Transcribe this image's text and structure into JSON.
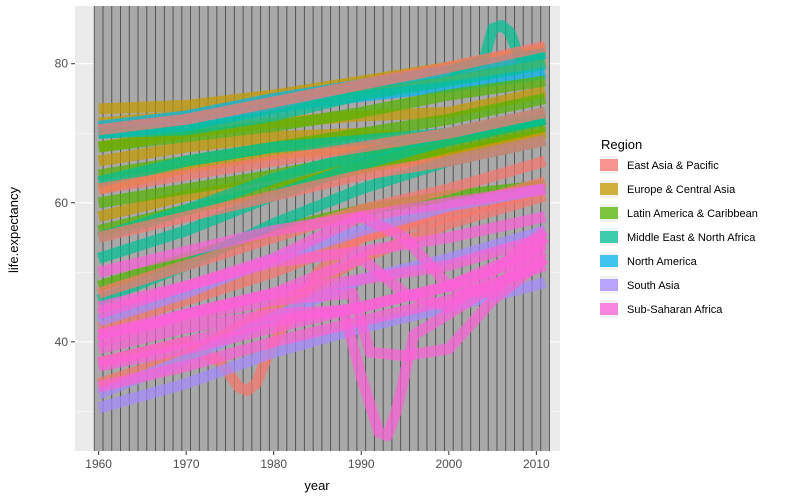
{
  "chart_data": {
    "type": "line",
    "xlabel": "year",
    "ylabel": "life.expectancy",
    "xlim": [
      1957.3,
      2012.7
    ],
    "ylim": [
      24.3,
      88.3
    ],
    "x_ticks": [
      1960,
      1970,
      1980,
      1990,
      2000,
      2010
    ],
    "y_ticks": [
      40,
      60,
      80
    ],
    "grid": true,
    "legend": {
      "title": "Region",
      "position": "right",
      "entries": [
        {
          "name": "East Asia & Pacific",
          "color": "#F8766D"
        },
        {
          "name": "Europe & Central Asia",
          "color": "#C49A00"
        },
        {
          "name": "Latin America & Caribbean",
          "color": "#53B400"
        },
        {
          "name": "Middle East & North Africa",
          "color": "#00C094"
        },
        {
          "name": "North America",
          "color": "#00B6EB"
        },
        {
          "name": "South Asia",
          "color": "#A58AFF"
        },
        {
          "name": "Sub-Saharan Africa",
          "color": "#FB61D7"
        }
      ]
    },
    "series": [
      {
        "region": "Europe & Central Asia",
        "x": [
          1960,
          1970,
          1980,
          1990,
          2000,
          2011
        ],
        "y": [
          73.5,
          74,
          75.5,
          77.5,
          79.5,
          82
        ]
      },
      {
        "region": "Europe & Central Asia",
        "x": [
          1960,
          1970,
          1980,
          1990,
          2000,
          2011
        ],
        "y": [
          71.5,
          72.5,
          74,
          76,
          78,
          80.5
        ]
      },
      {
        "region": "Europe & Central Asia",
        "x": [
          1960,
          1970,
          1980,
          1990,
          2000,
          2011
        ],
        "y": [
          68,
          70,
          71.5,
          72.5,
          73,
          76
        ]
      },
      {
        "region": "Europe & Central Asia",
        "x": [
          1960,
          1970,
          1980,
          1990,
          2000,
          2011
        ],
        "y": [
          66,
          68,
          69.5,
          70,
          69,
          72
        ]
      },
      {
        "region": "Europe & Central Asia",
        "x": [
          1960,
          1970,
          1980,
          1990,
          2000,
          2011
        ],
        "y": [
          62,
          65,
          67,
          68,
          67,
          70
        ]
      },
      {
        "region": "Europe & Central Asia",
        "x": [
          1960,
          1970,
          1980,
          1990,
          2000,
          2011
        ],
        "y": [
          58,
          61,
          63,
          65,
          67,
          70
        ]
      },
      {
        "region": "North America",
        "x": [
          1960,
          1970,
          1980,
          1990,
          2000,
          2011
        ],
        "y": [
          70,
          71,
          73.7,
          75.3,
          76.7,
          78.6
        ]
      },
      {
        "region": "North America",
        "x": [
          1960,
          1970,
          1980,
          1990,
          2000,
          2011
        ],
        "y": [
          71,
          72.5,
          75,
          77,
          79,
          81.5
        ]
      },
      {
        "region": "Latin America & Caribbean",
        "x": [
          1960,
          1970,
          1980,
          1990,
          2000,
          2011
        ],
        "y": [
          68,
          69.5,
          71,
          73,
          75.5,
          77.5
        ]
      },
      {
        "region": "Latin America & Caribbean",
        "x": [
          1960,
          1970,
          1980,
          1990,
          2000,
          2011
        ],
        "y": [
          64,
          66,
          68,
          70,
          72,
          75
        ]
      },
      {
        "region": "Latin America & Caribbean",
        "x": [
          1960,
          1970,
          1980,
          1990,
          2000,
          2011
        ],
        "y": [
          60,
          62,
          64,
          66.5,
          69,
          72
        ]
      },
      {
        "region": "Latin America & Caribbean",
        "x": [
          1960,
          1970,
          1980,
          1990,
          2000,
          2011
        ],
        "y": [
          56,
          59,
          62,
          65,
          68,
          71
        ]
      },
      {
        "region": "Latin America & Caribbean",
        "x": [
          1960,
          1970,
          1980,
          1990,
          2000,
          2011
        ],
        "y": [
          48,
          52,
          56,
          59,
          61,
          62.5
        ]
      },
      {
        "region": "Middle East & North Africa",
        "x": [
          1960,
          1970,
          1980,
          1990,
          2000,
          2011
        ],
        "y": [
          70,
          70.5,
          72.5,
          75.5,
          77.5,
          80
        ]
      },
      {
        "region": "Middle East & North Africa",
        "x": [
          1960,
          1970,
          1980,
          1990,
          2000,
          2011
        ],
        "y": [
          63,
          66,
          68,
          69,
          70,
          72
        ]
      },
      {
        "region": "Middle East & North Africa",
        "x": [
          1960,
          1970,
          1980,
          1990,
          2000,
          2011
        ],
        "y": [
          55,
          59,
          63.5,
          67,
          70,
          73
        ]
      },
      {
        "region": "Middle East & North Africa",
        "x": [
          1960,
          1970,
          1980,
          1990,
          2000,
          2011
        ],
        "y": [
          52,
          56,
          61,
          65.5,
          69,
          72
        ]
      },
      {
        "region": "Middle East & North Africa",
        "x": [
          1960,
          1970,
          1980,
          1990,
          2000,
          2011
        ],
        "y": [
          46,
          51,
          57,
          62,
          66,
          69
        ]
      },
      {
        "region": "Middle East & North Africa",
        "x": [
          2000,
          2004,
          2005,
          2006,
          2007,
          2008,
          2011
        ],
        "y": [
          79,
          80.5,
          85,
          85.5,
          84.5,
          81,
          81.5
        ]
      },
      {
        "region": "East Asia & Pacific",
        "x": [
          1960,
          1970,
          1980,
          1990,
          2000,
          2011
        ],
        "y": [
          70.5,
          72,
          74.5,
          77,
          79.5,
          82.5
        ]
      },
      {
        "region": "East Asia & Pacific",
        "x": [
          1960,
          1970,
          1980,
          1990,
          2000,
          2011
        ],
        "y": [
          62,
          64,
          66,
          68,
          70,
          73
        ]
      },
      {
        "region": "East Asia & Pacific",
        "x": [
          1960,
          1970,
          1980,
          1990,
          2000,
          2011
        ],
        "y": [
          55,
          58,
          61,
          64,
          66,
          69
        ]
      },
      {
        "region": "East Asia & Pacific",
        "x": [
          1960,
          1970,
          1980,
          1990,
          2000,
          2011
        ],
        "y": [
          47,
          51,
          55,
          59,
          62,
          66
        ]
      },
      {
        "region": "East Asia & Pacific",
        "x": [
          1960,
          1970,
          1980,
          1990,
          2000,
          2011
        ],
        "y": [
          42,
          46,
          50,
          55,
          59,
          63
        ]
      },
      {
        "region": "East Asia & Pacific",
        "x": [
          1960,
          1970,
          1974,
          1976,
          1977,
          1978,
          1980,
          1985,
          1990,
          2000,
          2011
        ],
        "y": [
          37,
          40,
          37,
          33.5,
          33,
          34,
          40,
          50,
          55,
          58,
          62
        ]
      },
      {
        "region": "East Asia & Pacific",
        "x": [
          1960,
          1970,
          1980,
          1990,
          2000,
          2011
        ],
        "y": [
          34,
          38,
          45,
          52,
          57,
          61
        ]
      },
      {
        "region": "South Asia",
        "x": [
          1960,
          1970,
          1980,
          1990,
          2000,
          2011
        ],
        "y": [
          43,
          47,
          52,
          56,
          59.5,
          62
        ]
      },
      {
        "region": "South Asia",
        "x": [
          1960,
          1970,
          1980,
          1990,
          2000,
          2011
        ],
        "y": [
          32.5,
          37.5,
          43.5,
          49,
          52,
          56
        ]
      },
      {
        "region": "South Asia",
        "x": [
          1960,
          1970,
          1980,
          1990,
          2000,
          2011
        ],
        "y": [
          30.5,
          34,
          38.5,
          42,
          45,
          48.5
        ]
      },
      {
        "region": "Sub-Saharan Africa",
        "x": [
          1960,
          1970,
          1980,
          1990,
          2000,
          2011
        ],
        "y": [
          50,
          53,
          56,
          58,
          60,
          62
        ]
      },
      {
        "region": "Sub-Saharan Africa",
        "x": [
          1960,
          1970,
          1980,
          1990,
          2000,
          2011
        ],
        "y": [
          45,
          48,
          51.5,
          53,
          55,
          58
        ]
      },
      {
        "region": "Sub-Saharan Africa",
        "x": [
          1960,
          1970,
          1980,
          1990,
          2000,
          2011
        ],
        "y": [
          41,
          44,
          47,
          49,
          51,
          55
        ]
      },
      {
        "region": "Sub-Saharan Africa",
        "x": [
          1960,
          1970,
          1980,
          1990,
          2000,
          2011
        ],
        "y": [
          37,
          40,
          43,
          45,
          48,
          53
        ]
      },
      {
        "region": "Sub-Saharan Africa",
        "x": [
          1960,
          1970,
          1980,
          1990,
          2000,
          2011
        ],
        "y": [
          33.5,
          36.5,
          40,
          43,
          46,
          51
        ]
      },
      {
        "region": "Sub-Saharan Africa",
        "x": [
          1960,
          1970,
          1980,
          1986,
          1990,
          1995,
          2000,
          2005,
          2011
        ],
        "y": [
          40,
          44,
          47,
          50,
          52,
          47,
          45,
          50,
          56
        ]
      },
      {
        "region": "Sub-Saharan Africa",
        "x": [
          1960,
          1970,
          1980,
          1990,
          1995,
          2000,
          2005,
          2011
        ],
        "y": [
          44,
          48,
          52,
          58,
          55,
          48,
          47,
          55
        ]
      },
      {
        "region": "Sub-Saharan Africa",
        "x": [
          1960,
          1970,
          1980,
          1988,
          1990,
          1992,
          1993,
          1994,
          1996,
          2000,
          2005,
          2011
        ],
        "y": [
          39,
          42,
          44,
          44.5,
          35,
          27,
          26.5,
          30,
          41,
          44,
          48,
          52
        ]
      },
      {
        "region": "Sub-Saharan Africa",
        "x": [
          1960,
          1970,
          1980,
          1989,
          1991,
          1995,
          2000,
          2005,
          2011
        ],
        "y": [
          41,
          43.5,
          46,
          47,
          38.5,
          38,
          39,
          46,
          52
        ]
      },
      {
        "region": "Sub-Saharan Africa",
        "x": [
          1960,
          1970,
          1980,
          1990,
          2000,
          2011
        ],
        "y": [
          36.5,
          39,
          42,
          45,
          48,
          54
        ]
      }
    ]
  }
}
